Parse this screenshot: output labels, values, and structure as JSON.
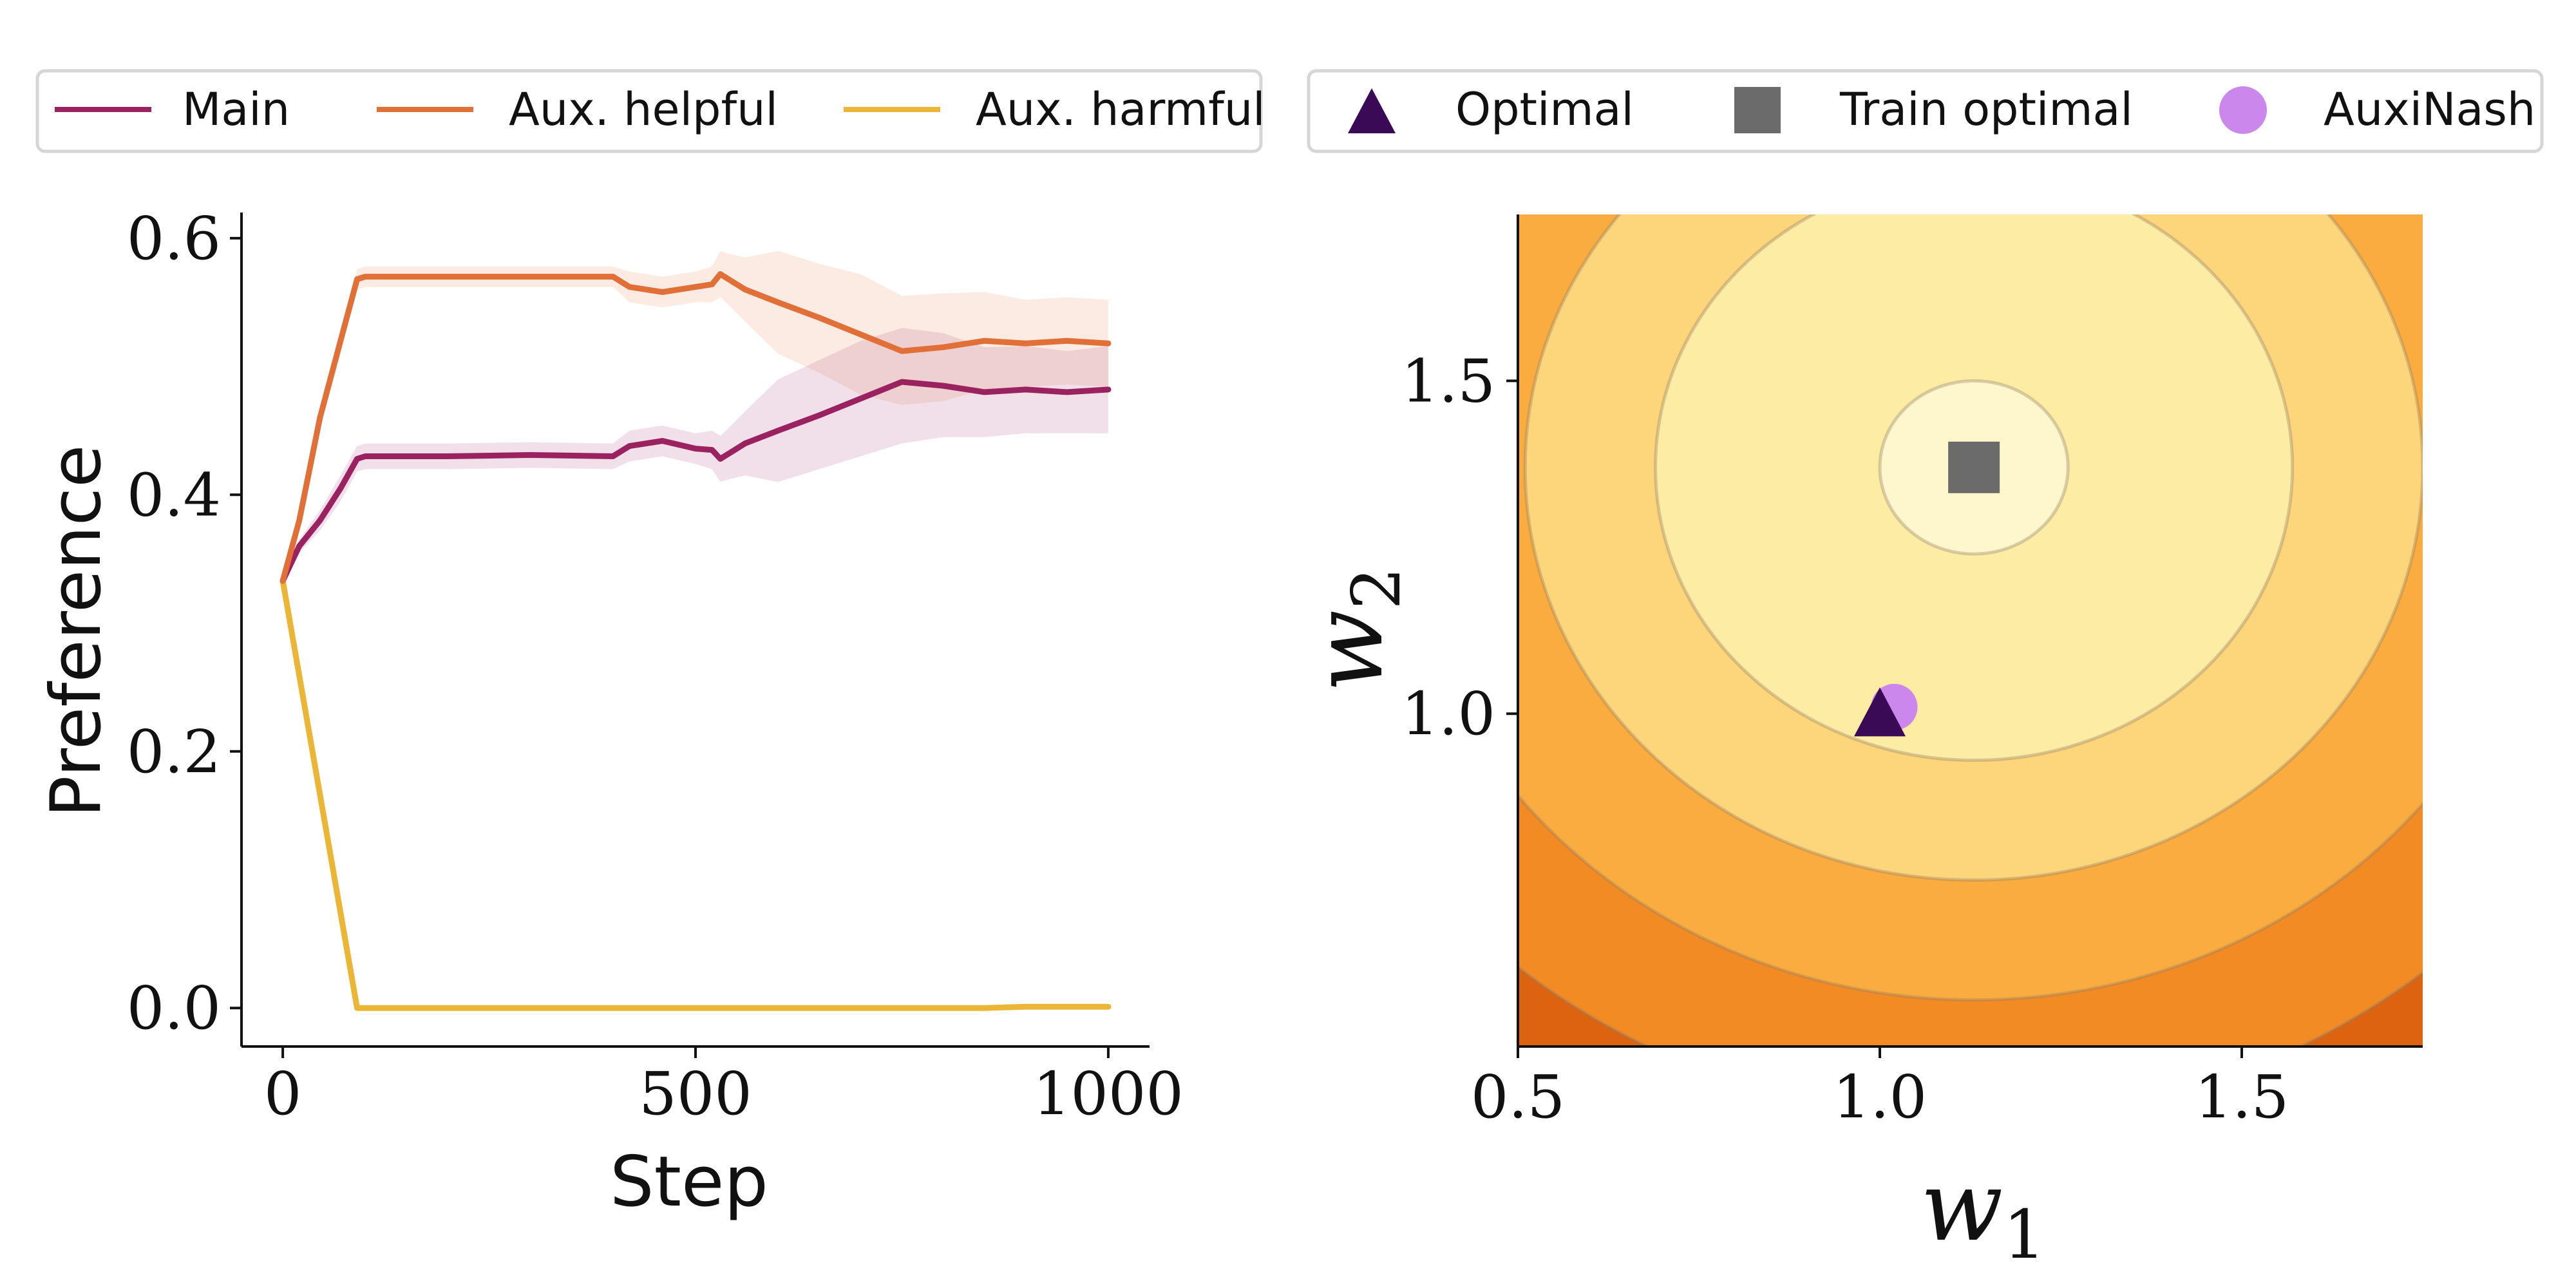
{
  "legends": {
    "left": [
      {
        "label": "Main",
        "color": "#9b2260"
      },
      {
        "label": "Aux. helpful",
        "color": "#e07038"
      },
      {
        "label": "Aux. harmful",
        "color": "#ebb535"
      }
    ],
    "right": [
      {
        "label": "Optimal",
        "color": "#3b0a56",
        "marker": "triangle"
      },
      {
        "label": "Train optimal",
        "color": "#6b6b6b",
        "marker": "square"
      },
      {
        "label": "AuxiNash",
        "color": "#cc87ec",
        "marker": "circle"
      }
    ]
  },
  "chart_data": [
    {
      "type": "line",
      "title": "",
      "xlabel": "Step",
      "ylabel": "Preference",
      "xlim": [
        -50,
        1050
      ],
      "ylim": [
        -0.03,
        0.62
      ],
      "xticks": [
        0,
        500,
        1000
      ],
      "xtick_labels": [
        "0",
        "500",
        "1000"
      ],
      "yticks": [
        0.0,
        0.2,
        0.4,
        0.6
      ],
      "ytick_labels": [
        "0.0",
        "0.2",
        "0.4",
        "0.6"
      ],
      "grid": false,
      "series": [
        {
          "name": "Main",
          "color": "#9b2260",
          "x": [
            0,
            20,
            45,
            70,
            90,
            100,
            200,
            300,
            400,
            420,
            460,
            500,
            520,
            530,
            540,
            560,
            600,
            650,
            700,
            750,
            800,
            850,
            900,
            950,
            1000
          ],
          "y": [
            0.333,
            0.36,
            0.38,
            0.405,
            0.428,
            0.43,
            0.43,
            0.431,
            0.43,
            0.438,
            0.442,
            0.436,
            0.435,
            0.428,
            0.432,
            0.44,
            0.45,
            0.462,
            0.475,
            0.488,
            0.485,
            0.48,
            0.482,
            0.48,
            0.482
          ],
          "band_lower": [
            0.333,
            0.355,
            0.372,
            0.395,
            0.418,
            0.42,
            0.42,
            0.421,
            0.42,
            0.426,
            0.43,
            0.424,
            0.42,
            0.41,
            0.412,
            0.415,
            0.41,
            0.42,
            0.43,
            0.44,
            0.445,
            0.445,
            0.448,
            0.448,
            0.448
          ],
          "band_upper": [
            0.333,
            0.365,
            0.388,
            0.415,
            0.438,
            0.44,
            0.44,
            0.441,
            0.44,
            0.45,
            0.454,
            0.448,
            0.45,
            0.446,
            0.452,
            0.465,
            0.49,
            0.505,
            0.52,
            0.53,
            0.526,
            0.515,
            0.516,
            0.512,
            0.516
          ]
        },
        {
          "name": "Aux. helpful",
          "color": "#e07038",
          "x": [
            0,
            20,
            45,
            70,
            90,
            100,
            200,
            300,
            400,
            420,
            460,
            500,
            520,
            530,
            540,
            560,
            600,
            650,
            700,
            750,
            800,
            850,
            900,
            950,
            1000
          ],
          "y": [
            0.333,
            0.38,
            0.46,
            0.52,
            0.568,
            0.57,
            0.57,
            0.57,
            0.57,
            0.562,
            0.558,
            0.562,
            0.564,
            0.572,
            0.568,
            0.56,
            0.55,
            0.538,
            0.525,
            0.512,
            0.515,
            0.52,
            0.518,
            0.52,
            0.518
          ],
          "band_lower": [
            0.333,
            0.375,
            0.455,
            0.515,
            0.56,
            0.562,
            0.562,
            0.562,
            0.562,
            0.55,
            0.546,
            0.55,
            0.55,
            0.554,
            0.548,
            0.535,
            0.51,
            0.495,
            0.478,
            0.47,
            0.473,
            0.482,
            0.484,
            0.486,
            0.484
          ],
          "band_upper": [
            0.333,
            0.385,
            0.465,
            0.525,
            0.576,
            0.578,
            0.578,
            0.578,
            0.578,
            0.574,
            0.57,
            0.574,
            0.578,
            0.59,
            0.588,
            0.585,
            0.59,
            0.58,
            0.572,
            0.555,
            0.557,
            0.558,
            0.552,
            0.554,
            0.552
          ]
        },
        {
          "name": "Aux. harmful",
          "color": "#ebb535",
          "x": [
            0,
            90,
            100,
            200,
            300,
            400,
            500,
            600,
            700,
            800,
            850,
            900,
            1000
          ],
          "y": [
            0.333,
            0.0,
            0.0,
            0.0,
            0.0,
            0.0,
            0.0,
            0.0,
            0.0,
            0.0,
            0.0,
            0.001,
            0.001
          ]
        }
      ]
    },
    {
      "type": "contour",
      "title": "",
      "xlabel": "w",
      "xlabel_sub": "1",
      "ylabel": "w",
      "ylabel_sub": "2",
      "xlim": [
        0.5,
        1.75
      ],
      "ylim": [
        0.5,
        1.75
      ],
      "xticks": [
        0.5,
        1.0,
        1.5
      ],
      "xtick_labels": [
        "0.5",
        "1.0",
        "1.5"
      ],
      "yticks": [
        1.0,
        1.5
      ],
      "ytick_labels": [
        "1.0",
        "1.5"
      ],
      "center": [
        1.13,
        1.37
      ],
      "level_radii": [
        0.13,
        0.44,
        0.62,
        0.8,
        0.98,
        1.12,
        1.24
      ],
      "level_colors": [
        "#fff7cc",
        "#fdeca3",
        "#fdd57a",
        "#fbac3f",
        "#f28b23",
        "#dc6410",
        "#b84a08",
        "#88300b"
      ],
      "points": [
        {
          "name": "Optimal",
          "x": 1.0,
          "y": 0.995,
          "marker": "triangle",
          "color": "#3b0a56"
        },
        {
          "name": "Train optimal",
          "x": 1.13,
          "y": 1.37,
          "marker": "square",
          "color": "#6b6b6b"
        },
        {
          "name": "AuxiNash",
          "x": 1.02,
          "y": 1.01,
          "marker": "circle",
          "color": "#cc87ec"
        }
      ]
    }
  ]
}
